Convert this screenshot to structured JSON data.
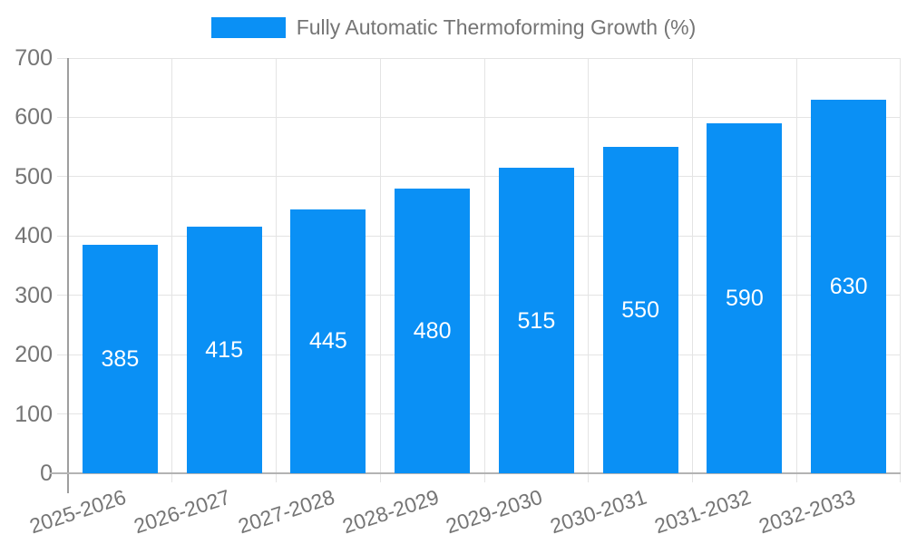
{
  "chart_data": {
    "type": "bar",
    "title": "Fully Automatic Thermoforming Growth (%)",
    "categories": [
      "2025-2026",
      "2026-2027",
      "2027-2028",
      "2028-2029",
      "2029-2030",
      "2030-2031",
      "2031-2032",
      "2032-2033"
    ],
    "series": [
      {
        "name": "Fully Automatic Thermoforming Growth (%)",
        "values": [
          385,
          415,
          445,
          480,
          515,
          550,
          590,
          630
        ]
      }
    ],
    "value_labels_visible": true,
    "xlabel": "",
    "ylabel": "",
    "ylim": [
      0,
      700
    ],
    "yticks": [
      0,
      100,
      200,
      300,
      400,
      500,
      600,
      700
    ],
    "grid": true,
    "x_tick_rotation_deg": -18,
    "legend_position": "top",
    "colors": {
      "bar": "#0A90F5",
      "gridline": "#e4e4e4",
      "axis_y": "#9e9e9e",
      "axis_x": "#b3b3b3",
      "tick_text": "#757575",
      "legend_text": "#757575",
      "value_text": "#ffffff",
      "background": "#ffffff"
    }
  }
}
